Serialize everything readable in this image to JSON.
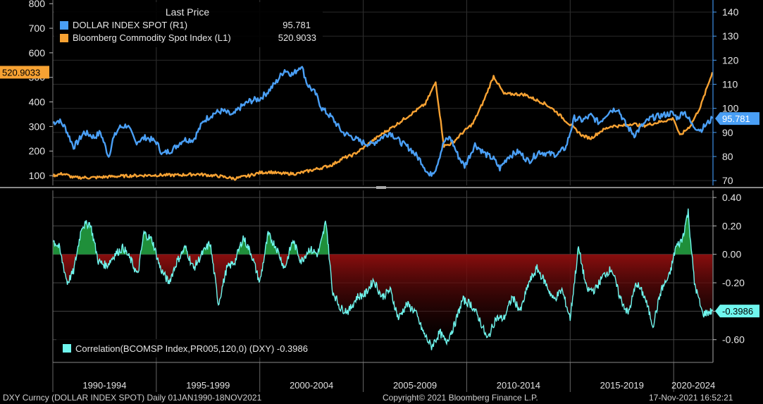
{
  "colors": {
    "dollar": "#4a9ff5",
    "commodity": "#f7a233",
    "correlation": "#6ff6ee",
    "pos_fill": "#1f8f3a",
    "neg_fill": "#8a0e0e",
    "label_box": "#f7a233"
  },
  "chart_data": [
    {
      "type": "line",
      "legend": {
        "header": "Last Price",
        "placement": "top-left",
        "items": [
          {
            "label": "DOLLAR INDEX SPOT  (R1)",
            "value": "95.781"
          },
          {
            "label": "Bloomberg Commodity Spot Index  (L1) ",
            "value": "520.9033"
          }
        ]
      },
      "x_tick_labels": [
        "1990-1994",
        "1995-1999",
        "2000-2004",
        "2005-2009",
        "2010-2014",
        "2015-2019",
        "2020-2024"
      ],
      "x_range": [
        1990.0,
        2021.9
      ],
      "left_axis": {
        "ticks": [
          "100",
          "200",
          "300",
          "400",
          "500",
          "600",
          "700",
          "800"
        ],
        "range": [
          60,
          815
        ]
      },
      "right_axis": {
        "ticks": [
          "70",
          "80",
          "90",
          "100",
          "110",
          "120",
          "130",
          "140"
        ],
        "range": [
          68,
          145
        ]
      },
      "last_labels": {
        "left": "520.9033",
        "right": "95.781"
      },
      "series": [
        {
          "name": "DOLLAR INDEX SPOT",
          "axis": "right",
          "x": [
            1990.0,
            1990.3,
            1990.6,
            1991.0,
            1991.2,
            1991.5,
            1991.8,
            1992.0,
            1992.3,
            1992.7,
            1992.9,
            1993.2,
            1993.6,
            1994.0,
            1994.5,
            1995.0,
            1995.3,
            1995.8,
            1996.3,
            1996.8,
            1997.3,
            1997.8,
            1998.2,
            1998.7,
            1999.0,
            1999.5,
            2000.0,
            2000.4,
            2000.8,
            2001.2,
            2001.6,
            2002.0,
            2002.3,
            2002.7,
            2003.0,
            2003.5,
            2004.0,
            2004.5,
            2004.9,
            2005.4,
            2005.9,
            2006.3,
            2006.8,
            2007.3,
            2007.8,
            2008.2,
            2008.5,
            2008.9,
            2009.2,
            2009.6,
            2009.9,
            2010.4,
            2010.9,
            2011.3,
            2011.6,
            2012.0,
            2012.5,
            2013.0,
            2013.5,
            2014.0,
            2014.4,
            2014.8,
            2015.2,
            2015.6,
            2016.0,
            2016.4,
            2016.9,
            2017.3,
            2017.7,
            2018.1,
            2018.5,
            2018.9,
            2019.4,
            2019.9,
            2020.2,
            2020.5,
            2020.9,
            2021.3,
            2021.87
          ],
          "values": [
            94,
            95,
            92,
            84,
            86,
            90,
            89,
            88,
            90,
            80,
            87,
            92,
            93,
            86,
            88,
            86,
            81,
            83,
            87,
            87,
            95,
            98,
            99,
            97,
            100,
            103,
            104,
            107,
            111,
            116,
            114,
            118,
            110,
            106,
            100,
            96,
            90,
            88,
            86,
            85,
            88,
            90,
            86,
            83,
            78,
            72,
            75,
            86,
            88,
            80,
            76,
            85,
            81,
            79,
            75,
            80,
            82,
            78,
            82,
            81,
            81,
            84,
            96,
            95,
            97,
            94,
            99,
            100,
            93,
            89,
            93,
            96,
            97,
            98,
            96,
            99,
            93,
            91,
            95.781
          ]
        },
        {
          "name": "Bloomberg Commodity Spot Index",
          "axis": "left",
          "x": [
            1990.0,
            1990.5,
            1991.0,
            1992.0,
            1993.0,
            1994.0,
            1995.0,
            1996.0,
            1997.0,
            1998.0,
            1998.8,
            1999.5,
            2000.0,
            2000.5,
            2001.0,
            2001.8,
            2002.5,
            2003.0,
            2003.5,
            2004.0,
            2004.5,
            2005.0,
            2005.5,
            2006.0,
            2006.5,
            2007.0,
            2007.5,
            2008.0,
            2008.5,
            2008.9,
            2009.3,
            2009.8,
            2010.3,
            2010.8,
            2011.3,
            2011.8,
            2012.3,
            2012.8,
            2013.3,
            2013.8,
            2014.3,
            2014.8,
            2015.2,
            2015.6,
            2016.0,
            2016.5,
            2017.0,
            2017.5,
            2018.0,
            2018.5,
            2019.0,
            2019.5,
            2020.0,
            2020.3,
            2020.8,
            2021.3,
            2021.87
          ],
          "values": [
            100,
            108,
            92,
            92,
            97,
            100,
            102,
            102,
            106,
            98,
            88,
            100,
            112,
            115,
            108,
            108,
            122,
            132,
            144,
            170,
            184,
            212,
            245,
            275,
            302,
            332,
            362,
            392,
            480,
            220,
            232,
            275,
            312,
            400,
            505,
            432,
            432,
            430,
            410,
            392,
            362,
            322,
            292,
            262,
            252,
            282,
            302,
            302,
            312,
            302,
            312,
            322,
            332,
            262,
            302,
            382,
            520.9033
          ]
        }
      ]
    },
    {
      "type": "area",
      "legend": {
        "label": "Correlation(BCOMSP Index,PR005,120,0) (DXY) -0.3986",
        "placement": "bottom-left"
      },
      "right_axis": {
        "ticks": [
          "0.40",
          "0.20",
          "0.00",
          "-0.20",
          "-0.40",
          "-0.60"
        ],
        "range": [
          -0.76,
          0.45
        ]
      },
      "last_label": "-0.3986",
      "series": [
        {
          "name": "Correlation(BCOMSP Index,PR005,120,0) (DXY)",
          "x": [
            1990.0,
            1990.3,
            1990.7,
            1991.0,
            1991.4,
            1991.8,
            1992.2,
            1992.6,
            1993.0,
            1993.4,
            1993.8,
            1994.1,
            1994.4,
            1994.8,
            1995.2,
            1995.6,
            1996.0,
            1996.4,
            1996.8,
            1997.2,
            1997.6,
            1998.0,
            1998.4,
            1998.8,
            1999.2,
            1999.6,
            2000.0,
            2000.4,
            2000.8,
            2001.2,
            2001.6,
            2002.0,
            2002.4,
            2002.8,
            2003.0,
            2003.2,
            2003.5,
            2003.9,
            2004.3,
            2004.7,
            2005.1,
            2005.5,
            2005.9,
            2006.3,
            2006.7,
            2007.1,
            2007.5,
            2007.9,
            2008.3,
            2008.7,
            2009.0,
            2009.4,
            2009.8,
            2010.2,
            2010.6,
            2011.0,
            2011.4,
            2011.8,
            2012.2,
            2012.6,
            2013.0,
            2013.4,
            2013.8,
            2014.2,
            2014.6,
            2015.0,
            2015.4,
            2015.8,
            2016.2,
            2016.6,
            2017.0,
            2017.4,
            2017.8,
            2018.2,
            2018.6,
            2019.0,
            2019.4,
            2019.8,
            2020.1,
            2020.4,
            2020.7,
            2021.0,
            2021.4,
            2021.87
          ],
          "values": [
            0.1,
            0.05,
            -0.2,
            -0.12,
            0.2,
            0.22,
            -0.05,
            -0.08,
            0.0,
            0.05,
            -0.05,
            -0.15,
            0.15,
            0.1,
            -0.1,
            -0.2,
            -0.05,
            0.05,
            -0.1,
            0.0,
            0.08,
            -0.35,
            -0.1,
            -0.05,
            0.12,
            0.0,
            -0.2,
            0.14,
            0.05,
            -0.1,
            0.1,
            -0.05,
            0.04,
            0.0,
            0.1,
            0.24,
            -0.25,
            -0.38,
            -0.4,
            -0.3,
            -0.28,
            -0.18,
            -0.3,
            -0.25,
            -0.45,
            -0.35,
            -0.4,
            -0.55,
            -0.65,
            -0.55,
            -0.62,
            -0.5,
            -0.32,
            -0.35,
            -0.45,
            -0.6,
            -0.45,
            -0.45,
            -0.3,
            -0.4,
            -0.2,
            -0.1,
            -0.2,
            -0.32,
            -0.25,
            -0.45,
            0.05,
            -0.25,
            -0.25,
            -0.15,
            -0.1,
            -0.3,
            -0.42,
            -0.2,
            -0.3,
            -0.5,
            -0.25,
            -0.15,
            0.05,
            0.1,
            0.3,
            -0.2,
            -0.42,
            -0.3986
          ]
        }
      ]
    }
  ],
  "footer": {
    "left": "DXY Curncy (DOLLAR INDEX SPOT)  Daily 01JAN1990-18NOV2021",
    "center": "Copyright© 2021 Bloomberg Finance L.P.",
    "right": "17-Nov-2021 16:52:21"
  }
}
